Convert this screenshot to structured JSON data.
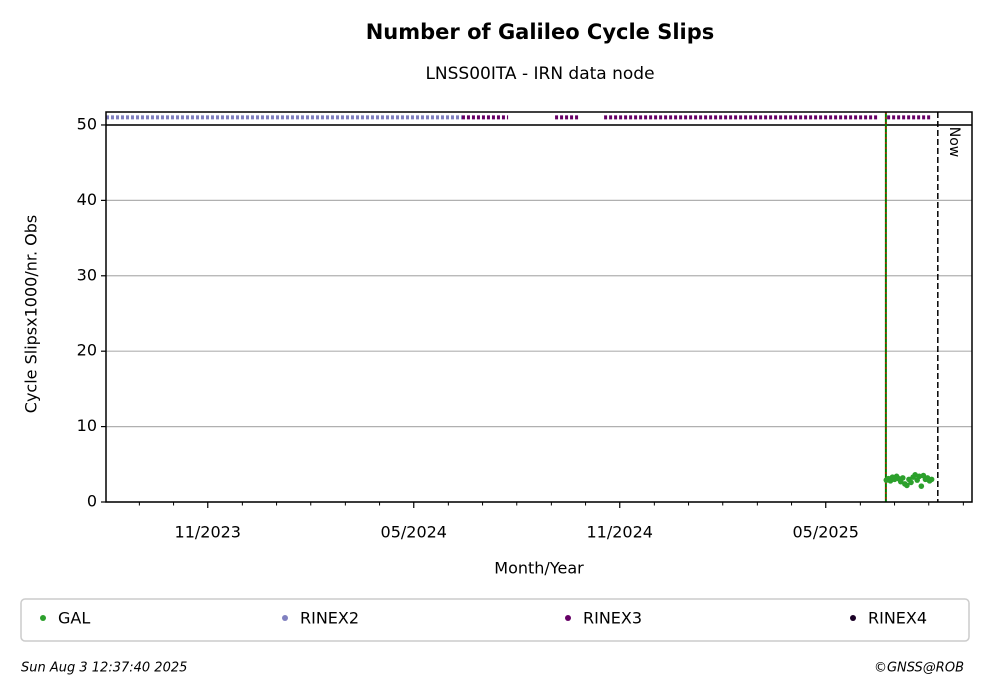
{
  "chart_data": {
    "type": "scatter",
    "title": "Number of Galileo Cycle Slips",
    "subtitle": "LNSS00ITA - IRN data node",
    "x_label": "Month/Year",
    "y_label": "Cycle Slipsx1000/nr. Obs",
    "xlim": [
      2023.586,
      2025.688
    ],
    "ylim": [
      0,
      51.72
    ],
    "xticks": [
      {
        "value": 2023.833,
        "label": "11/2023"
      },
      {
        "value": 2024.333,
        "label": "05/2024"
      },
      {
        "value": 2024.833,
        "label": "11/2024"
      },
      {
        "value": 2025.333,
        "label": "05/2025"
      }
    ],
    "xminorticks": [
      2023.667,
      2023.75,
      2023.917,
      2024.0,
      2024.083,
      2024.167,
      2024.25,
      2024.417,
      2024.5,
      2024.583,
      2024.667,
      2024.75,
      2024.917,
      2025.0,
      2025.083,
      2025.167,
      2025.25,
      2025.417,
      2025.5,
      2025.583,
      2025.667
    ],
    "yticks": [
      0,
      10,
      20,
      30,
      40,
      50
    ],
    "grid": true,
    "strip_boundary": 50,
    "marker_line_x": 2025.479,
    "now": {
      "x": 2025.605,
      "label": "Now"
    },
    "series": [
      {
        "name": "GAL",
        "color": "#2ca02c",
        "style": "points",
        "x": [
          2025.48,
          2025.485,
          2025.49,
          2025.495,
          2025.5,
          2025.505,
          2025.51,
          2025.515,
          2025.52,
          2025.525,
          2025.53,
          2025.535,
          2025.54,
          2025.545,
          2025.55,
          2025.555,
          2025.56,
          2025.565,
          2025.57,
          2025.575,
          2025.58,
          2025.585,
          2025.59
        ],
        "values": [
          2.9,
          3.1,
          2.8,
          3.3,
          3.0,
          3.4,
          3.1,
          2.7,
          3.2,
          2.4,
          2.2,
          3.0,
          2.6,
          3.3,
          3.6,
          2.9,
          3.4,
          2.1,
          3.5,
          3.0,
          3.2,
          2.8,
          3.0
        ]
      },
      {
        "name": "RINEX2",
        "color": "#8080c0",
        "style": "strip",
        "x": [
          2023.586,
          2024.45
        ],
        "values": [
          51,
          51
        ]
      },
      {
        "name": "RINEX3",
        "color": "#660066",
        "style": "strip",
        "x": [
          2024.45,
          2024.562,
          2024.62,
          2024.676,
          2024.734,
          2024.76,
          2024.795,
          2025.46,
          2025.47,
          2025.482,
          2025.591
        ],
        "values": [
          51,
          51,
          null,
          51,
          51,
          null,
          51,
          51,
          null,
          51,
          51
        ]
      },
      {
        "name": "RINEX4",
        "color": "#1a0026",
        "style": "strip",
        "x": [],
        "values": []
      }
    ],
    "footer_left": "Sun Aug  3 12:37:40 2025",
    "footer_right": "©GNSS@ROB"
  }
}
